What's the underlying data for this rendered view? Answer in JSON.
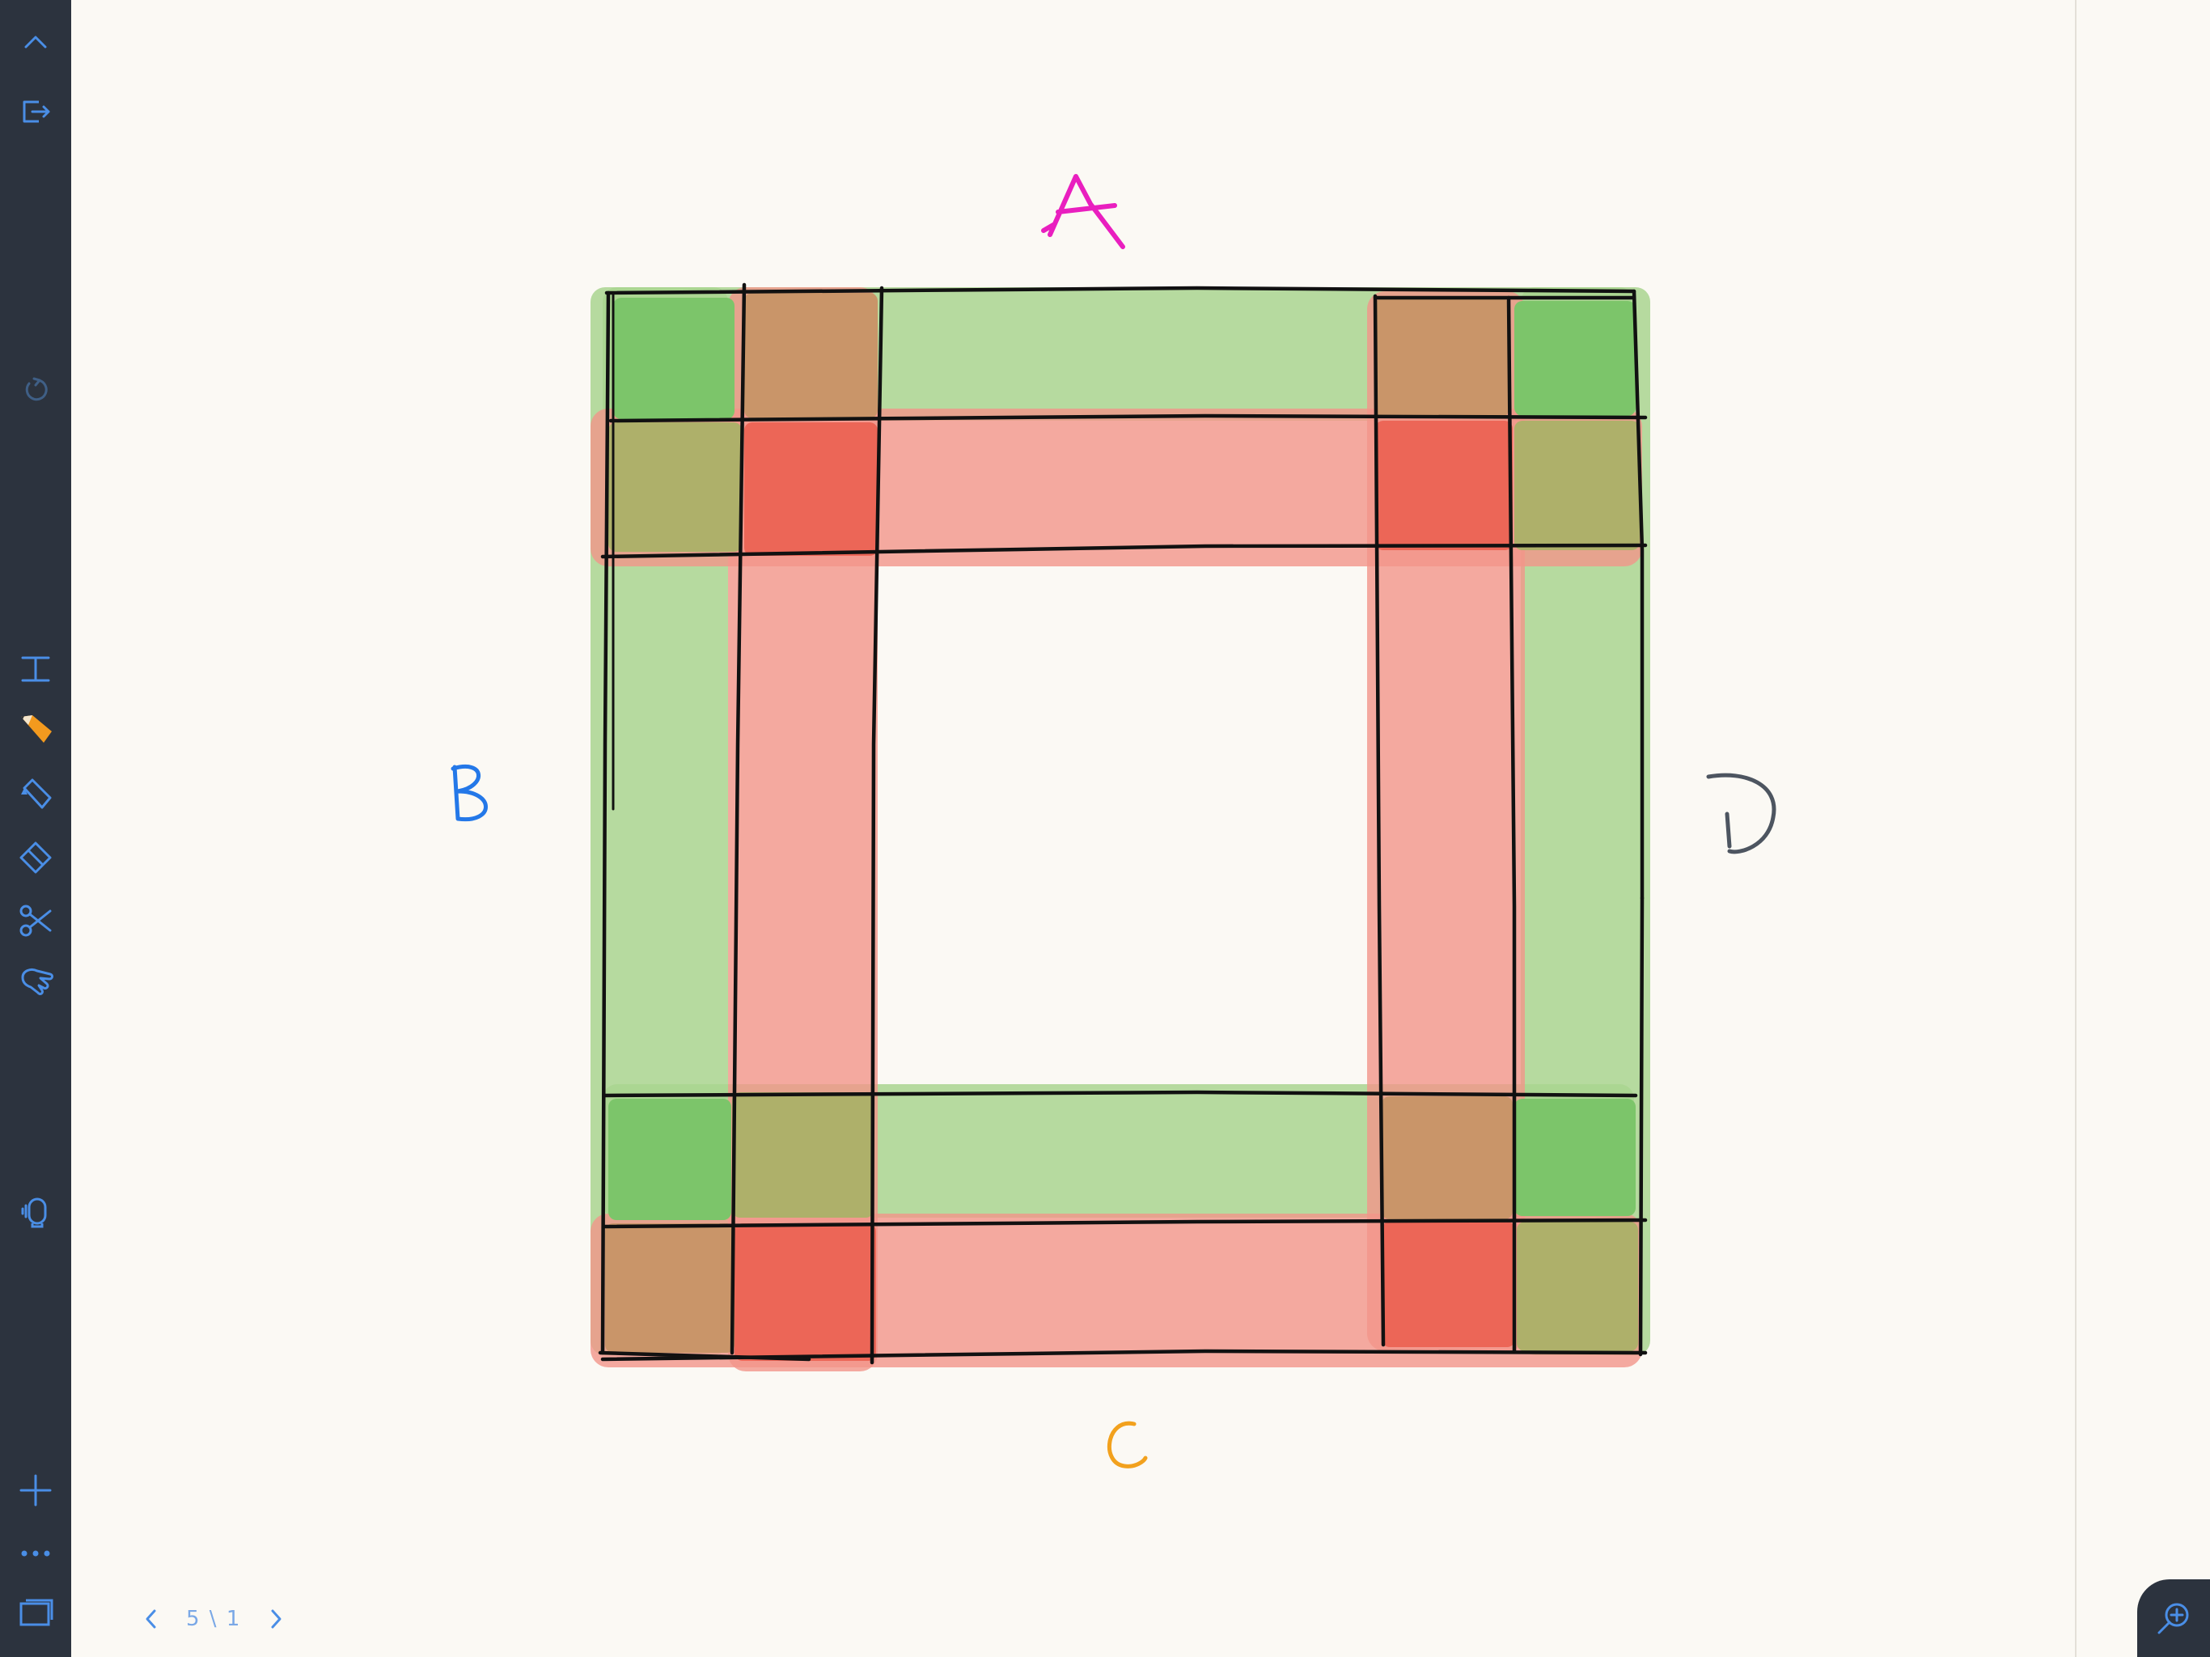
{
  "toolbar": {
    "items": [
      {
        "id": "collapse",
        "icon": "chevron-up-icon"
      },
      {
        "id": "export",
        "icon": "export-icon"
      },
      {
        "id": "undo",
        "icon": "undo-icon"
      },
      {
        "id": "text",
        "icon": "text-tool-icon"
      },
      {
        "id": "pencil",
        "icon": "pencil-icon",
        "active": true
      },
      {
        "id": "marker",
        "icon": "marker-icon"
      },
      {
        "id": "eraser",
        "icon": "eraser-icon"
      },
      {
        "id": "scissors",
        "icon": "scissors-icon"
      },
      {
        "id": "hand",
        "icon": "hand-pointer-icon"
      },
      {
        "id": "presenter",
        "icon": "presenter-icon"
      },
      {
        "id": "add-page",
        "icon": "plus-icon"
      },
      {
        "id": "more",
        "icon": "more-icon"
      },
      {
        "id": "pages",
        "icon": "pages-icon"
      }
    ],
    "icon_color": "#4a8ee6",
    "active_tool_color": "#f39a1e"
  },
  "page_nav": {
    "indicator": "5 \\ 1",
    "prev_icon": "chevron-left-icon",
    "next_icon": "chevron-right-icon"
  },
  "zoom": {
    "icon": "zoom-in-icon"
  },
  "drawing": {
    "labels": {
      "top": "A",
      "left": "B",
      "bottom": "C",
      "right": "D"
    },
    "label_colors": {
      "top": "#e91fbf",
      "left": "#2478e8",
      "bottom": "#f2a11d",
      "right": "#4d5560"
    },
    "band_colors": {
      "green": "#a9d58f",
      "red": "#f2958a",
      "green_strong": "#7cc56a",
      "red_strong": "#ec6657",
      "mixed": "#c99569",
      "olive": "#aeb06a"
    }
  }
}
